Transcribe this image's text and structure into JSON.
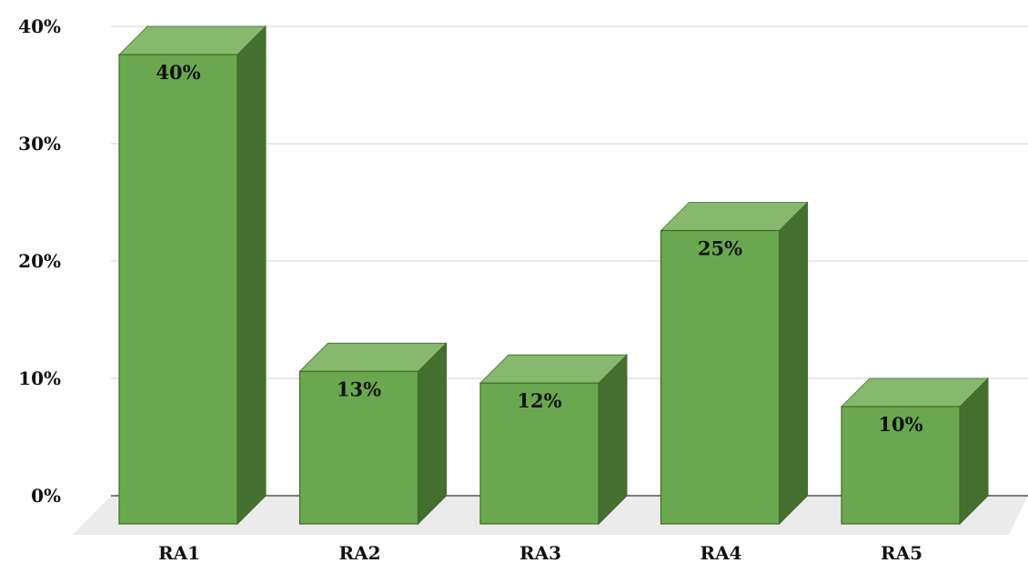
{
  "chart_data": {
    "type": "bar",
    "style": "3d-column",
    "categories": [
      "RA1",
      "RA2",
      "RA3",
      "RA4",
      "RA5"
    ],
    "values": [
      40,
      13,
      12,
      25,
      10
    ],
    "value_labels": [
      "40%",
      "13%",
      "12%",
      "25%",
      "10%"
    ],
    "ylim": [
      0,
      40
    ],
    "yticks": [
      0,
      10,
      20,
      30,
      40
    ],
    "ytick_labels": [
      "0%",
      "10%",
      "20%",
      "30%",
      "40%"
    ],
    "grid": true,
    "legend": "none",
    "title": "",
    "xlabel": "",
    "ylabel": "",
    "colors": {
      "front": "#6aa84f",
      "top": "#86b96e",
      "side": "#456f2f",
      "edge": "#3f6b25",
      "grid": "#d9d9d9",
      "floor": "#ebebeb",
      "axis": "#333333"
    }
  }
}
